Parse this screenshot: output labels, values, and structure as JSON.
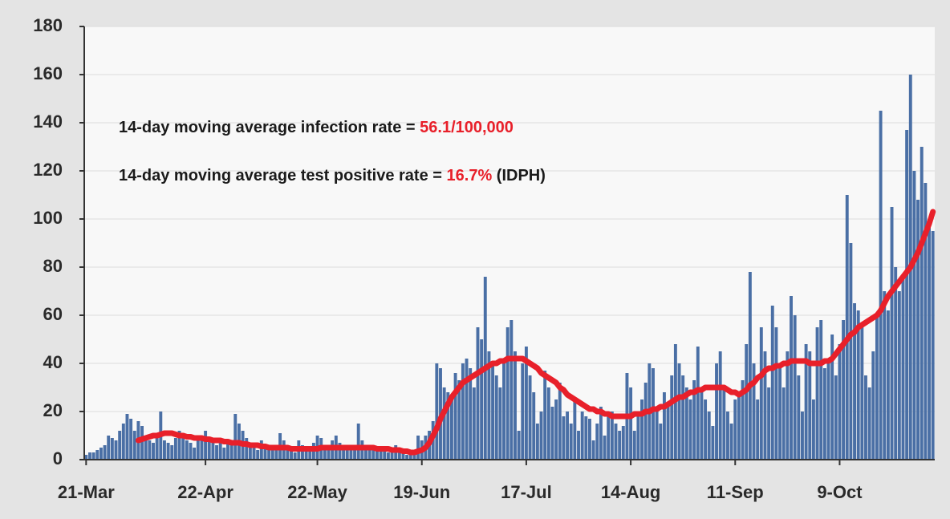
{
  "chart_data": {
    "type": "bar_line",
    "annotations": [
      [
        {
          "text": "14-day moving average infection rate = ",
          "color": "#1a1a1a"
        },
        {
          "text": "56.1/100,000",
          "color": "#e8202a"
        }
      ],
      [
        {
          "text": "14-day moving average test positive rate = ",
          "color": "#1a1a1a"
        },
        {
          "text": "16.7%",
          "color": "#e8202a"
        },
        {
          "text": " (IDPH)",
          "color": "#1a1a1a"
        }
      ]
    ],
    "categories": [
      "21-Mar",
      null,
      null,
      null,
      null,
      null,
      null,
      null,
      null,
      null,
      null,
      null,
      null,
      null,
      null,
      null,
      null,
      null,
      null,
      null,
      null,
      null,
      null,
      null,
      null,
      null,
      null,
      null,
      null,
      null,
      null,
      null,
      "22-Apr",
      null,
      null,
      null,
      null,
      null,
      null,
      null,
      null,
      null,
      null,
      null,
      null,
      null,
      null,
      null,
      null,
      null,
      null,
      null,
      null,
      null,
      null,
      null,
      null,
      null,
      null,
      null,
      null,
      null,
      "22-May",
      null,
      null,
      null,
      null,
      null,
      null,
      null,
      null,
      null,
      null,
      null,
      null,
      null,
      null,
      null,
      null,
      null,
      null,
      null,
      null,
      null,
      null,
      null,
      null,
      null,
      null,
      null,
      "19-Jun",
      null,
      null,
      null,
      null,
      null,
      null,
      null,
      null,
      null,
      null,
      null,
      null,
      null,
      null,
      null,
      null,
      null,
      null,
      null,
      null,
      null,
      null,
      null,
      null,
      null,
      null,
      null,
      "17-Jul",
      null,
      null,
      null,
      null,
      null,
      null,
      null,
      null,
      null,
      null,
      null,
      null,
      null,
      null,
      null,
      null,
      null,
      null,
      null,
      null,
      null,
      null,
      null,
      null,
      null,
      null,
      null,
      "14-Aug",
      null,
      null,
      null,
      null,
      null,
      null,
      null,
      null,
      null,
      null,
      null,
      null,
      null,
      null,
      null,
      null,
      null,
      null,
      null,
      null,
      null,
      null,
      null,
      null,
      null,
      null,
      null,
      "11-Sep",
      null,
      null,
      null,
      null,
      null,
      null,
      null,
      null,
      null,
      null,
      null,
      null,
      null,
      null,
      null,
      null,
      null,
      null,
      null,
      null,
      null,
      null,
      null,
      null,
      null,
      null,
      null,
      "9-Oct",
      null,
      null,
      null,
      null,
      null,
      null,
      null,
      null,
      null,
      null,
      null,
      null,
      null,
      null,
      null,
      null,
      null,
      null,
      null,
      null,
      null,
      null,
      null,
      null,
      null
    ],
    "series": [
      {
        "kind": "bar",
        "color": "#4a6fa5",
        "values": [
          2,
          3,
          3,
          4,
          5,
          6,
          10,
          9,
          8,
          12,
          15,
          19,
          17,
          12,
          16,
          14,
          10,
          8,
          7,
          9,
          20,
          8,
          7,
          6,
          9,
          12,
          10,
          8,
          7,
          5,
          8,
          10,
          12,
          9,
          7,
          6,
          8,
          5,
          7,
          6,
          19,
          15,
          12,
          9,
          6,
          5,
          4,
          8,
          6,
          5,
          4,
          6,
          11,
          8,
          5,
          4,
          3,
          8,
          6,
          4,
          5,
          7,
          10,
          9,
          6,
          5,
          8,
          10,
          7,
          6,
          5,
          4,
          6,
          15,
          8,
          5,
          4,
          6,
          5,
          4,
          5,
          3,
          4,
          6,
          5,
          3,
          2,
          4,
          3,
          10,
          8,
          10,
          12,
          16,
          40,
          38,
          30,
          28,
          26,
          36,
          33,
          40,
          42,
          38,
          30,
          55,
          50,
          76,
          45,
          40,
          35,
          30,
          42,
          55,
          58,
          45,
          12,
          40,
          47,
          35,
          28,
          15,
          20,
          37,
          30,
          22,
          25,
          32,
          18,
          20,
          15,
          25,
          12,
          20,
          18,
          17,
          8,
          15,
          22,
          10,
          18,
          20,
          15,
          12,
          14,
          36,
          30,
          12,
          20,
          25,
          32,
          40,
          38,
          20,
          15,
          28,
          22,
          35,
          48,
          40,
          35,
          30,
          25,
          33,
          47,
          30,
          25,
          20,
          14,
          40,
          45,
          30,
          20,
          15,
          25,
          28,
          33,
          48,
          78,
          40,
          25,
          55,
          45,
          30,
          64,
          55,
          38,
          30,
          45,
          68,
          60,
          35,
          20,
          48,
          45,
          25,
          55,
          58,
          38,
          42,
          52,
          35,
          48,
          58,
          110,
          90,
          65,
          62,
          55,
          35,
          30,
          45,
          60,
          145,
          70,
          62,
          105,
          80,
          70,
          75,
          137,
          160,
          120,
          108,
          130,
          115,
          100,
          95
        ]
      },
      {
        "kind": "line",
        "color": "#e8202a",
        "values": [
          null,
          null,
          null,
          null,
          null,
          null,
          null,
          null,
          null,
          null,
          null,
          null,
          null,
          null,
          8,
          8.5,
          9,
          9.5,
          10,
          10,
          10.5,
          11,
          11,
          11,
          10.5,
          10,
          10,
          9.5,
          9.5,
          9,
          9,
          9,
          8.5,
          8.5,
          8,
          8,
          8,
          7.5,
          7.5,
          7,
          7,
          7,
          6.5,
          6.5,
          6,
          6,
          6,
          5.5,
          5.5,
          5,
          5,
          5,
          5,
          5,
          5,
          4.5,
          4.5,
          4.5,
          4.5,
          4.5,
          4.5,
          4.5,
          4.5,
          5,
          5,
          5,
          5,
          5,
          5,
          5,
          5,
          5,
          5,
          5,
          5,
          5,
          5,
          5,
          4.5,
          4.5,
          4.5,
          4.5,
          4,
          4,
          4,
          3.5,
          3.5,
          3,
          3,
          3.5,
          4,
          5,
          7,
          10,
          13,
          17,
          20,
          23,
          26,
          28,
          30,
          32,
          33,
          34,
          35,
          36,
          37,
          38,
          39,
          40,
          40,
          41,
          41,
          42,
          42,
          42,
          42,
          42,
          41,
          40,
          39,
          38,
          36,
          35,
          34,
          33,
          32,
          30,
          29,
          27,
          26,
          25,
          24,
          23,
          22,
          21,
          21,
          20,
          20,
          19,
          19,
          18,
          18,
          18,
          18,
          18,
          18,
          19,
          19,
          19,
          20,
          20,
          21,
          21,
          22,
          22,
          23,
          24,
          25,
          26,
          26,
          27,
          28,
          28,
          29,
          29,
          30,
          30,
          30,
          30,
          30,
          30,
          29,
          28,
          28,
          27,
          28,
          29,
          31,
          32,
          34,
          35,
          37,
          38,
          38,
          39,
          39,
          40,
          40,
          41,
          41,
          41,
          41,
          41,
          40,
          40,
          40,
          40,
          41,
          41,
          42,
          44,
          46,
          48,
          50,
          52,
          53,
          55,
          56,
          57,
          58,
          59,
          60,
          62,
          65,
          68,
          70,
          72,
          74,
          76,
          78,
          80,
          83,
          86,
          90,
          94,
          98,
          103
        ]
      }
    ],
    "ylim": [
      0,
      180
    ],
    "yticks": [
      0,
      20,
      40,
      60,
      80,
      100,
      120,
      140,
      160,
      180
    ],
    "grid": true
  }
}
